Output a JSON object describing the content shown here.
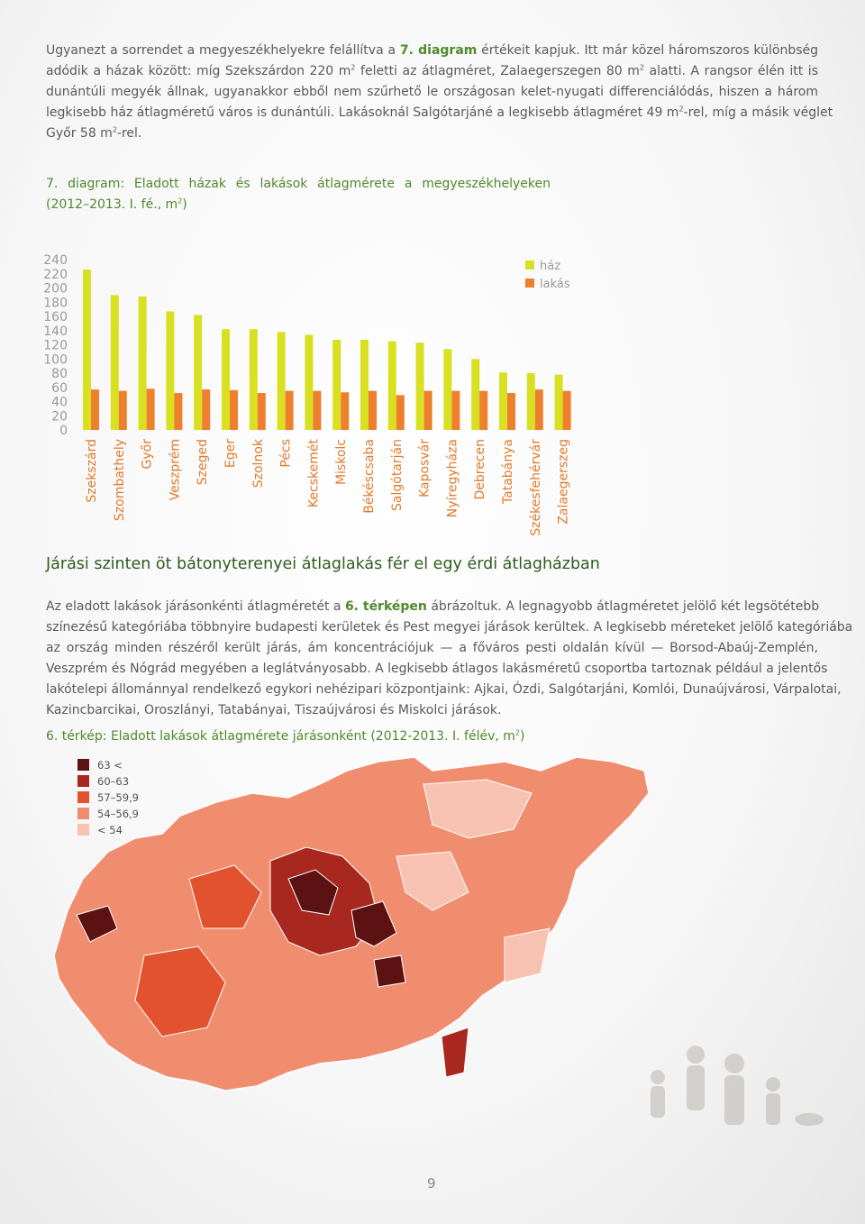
{
  "paragraph1": [
    [
      {
        "t": "Ugyanezt a sorrendet a megyeszékhelyekre felállítva a "
      },
      {
        "t": "7. diagram",
        "k": "bold"
      },
      {
        "t": " értékeit kapjuk. Itt már közel háromszoros különbség"
      }
    ],
    [
      {
        "t": "adódik a házak között: míg Szekszárdon 220 m"
      },
      {
        "t": "2",
        "k": "sup"
      },
      {
        "t": " feletti az átlagméret, Zalaegerszegen 80 m"
      },
      {
        "t": "2",
        "k": "sup"
      },
      {
        "t": " alatti. A rangsor élén itt is"
      }
    ],
    [
      {
        "t": "dunántúli megyék állnak, ugyanakkor ebből nem szűrhető le országosan kelet-nyugati differenciálódás, hiszen a három"
      }
    ],
    [
      {
        "t": "legkisebb ház átlagméretű város is dunántúli. Lakásoknál Salgótarjáné a legkisebb átlagméret 49 m"
      },
      {
        "t": "2",
        "k": "sup"
      },
      {
        "t": "-rel, míg a másik véglet"
      }
    ],
    [
      {
        "t": "Győr 58 m"
      },
      {
        "t": "2",
        "k": "sup"
      },
      {
        "t": "-rel."
      }
    ]
  ],
  "chart_title": [
    [
      {
        "t": "7. diagram: Eladott házak és lakások átlagmérete a megyeszékhelyeken"
      }
    ],
    [
      {
        "t": "(2012–2013. I. fé., m"
      },
      {
        "t": "2",
        "k": "sup"
      },
      {
        "t": ")"
      }
    ]
  ],
  "chart_data": {
    "type": "bar",
    "categories": [
      "Szekszárd",
      "Szombathely",
      "Győr",
      "Veszprém",
      "Szeged",
      "Eger",
      "Szolnok",
      "Pécs",
      "Kecskemét",
      "Miskolc",
      "Békéscsaba",
      "Salgótarján",
      "Kaposvár",
      "Nyíregyháza",
      "Debrecen",
      "Tatabánya",
      "Székesfehérvár",
      "Zalaegerszeg"
    ],
    "series": [
      {
        "name": "ház",
        "color": "#d9e021",
        "values": [
          226,
          190,
          188,
          167,
          162,
          142,
          142,
          138,
          134,
          127,
          127,
          125,
          123,
          114,
          100,
          81,
          80,
          78
        ]
      },
      {
        "name": "lakás",
        "color": "#ee7f2d",
        "values": [
          57,
          55,
          58,
          52,
          57,
          56,
          52,
          55,
          55,
          53,
          55,
          49,
          55,
          55,
          55,
          52,
          57,
          55
        ]
      }
    ],
    "ylim": [
      0,
      240
    ],
    "yticks": [
      0,
      20,
      40,
      60,
      80,
      100,
      120,
      140,
      160,
      180,
      200,
      220,
      240
    ],
    "grid": false,
    "legend": "top-right"
  },
  "heading": "Járási szinten öt bátonyterenyei átlaglakás fér el egy érdi átlagházban",
  "paragraph2": [
    [
      {
        "t": "Az eladott lakások járásonkénti átlagméretét a "
      },
      {
        "t": "6. térképen",
        "k": "bold"
      },
      {
        "t": " ábrázoltuk. A legnagyobb átlagméretet jelölő két legsötétebb"
      }
    ],
    [
      {
        "t": "színezésű kategóriába többnyire budapesti kerületek és Pest megyei járások kerültek. A legkisebb méreteket jelölő kategóriába"
      }
    ],
    [
      {
        "t": "az ország minden részéről került járás, ám koncentrációjuk — a főváros pesti oldalán kívül — Borsod-Abaúj-Zemplén,"
      }
    ],
    [
      {
        "t": "Veszprém és Nógrád megyében a leglátványosabb. A legkisebb átlagos lakásméretű csoportba tartoznak például a jelentős"
      }
    ],
    [
      {
        "t": "lakótelepi állománnyal rendelkező egykori nehézipari központjaink: Ajkai, Ózdi, Salgótarjáni, Komlói, Dunaújvárosi, Várpalotai,"
      }
    ],
    [
      {
        "t": "Kazincbarcikai, Oroszlányi, Tatabányai, Tiszaújvárosi és Miskolci járások."
      }
    ]
  ],
  "map_title": [
    [
      {
        "t": "6. térkép: Eladott lakások átlagmérete járásonként (2012-2013. I. félév, m"
      },
      {
        "t": "2",
        "k": "sup"
      },
      {
        "t": ")"
      }
    ]
  ],
  "map_legend": [
    {
      "label": "63 <",
      "color": "#5c1212"
    },
    {
      "label": "60–63",
      "color": "#a8281f"
    },
    {
      "label": "57–59,9",
      "color": "#e2522f"
    },
    {
      "label": "54–56,9",
      "color": "#f08d6f"
    },
    {
      "label": "< 54",
      "color": "#f8c2b2"
    }
  ],
  "page_number": "9"
}
